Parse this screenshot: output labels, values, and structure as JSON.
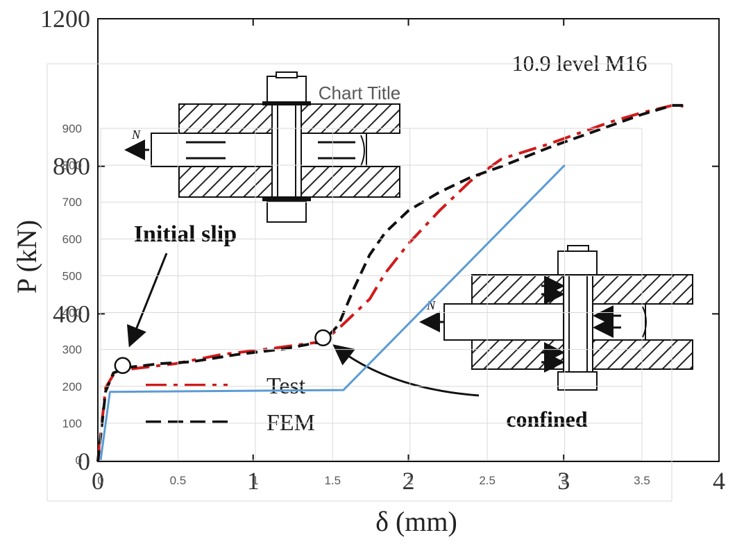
{
  "chart_data": [
    {
      "type": "line",
      "title": "",
      "xlabel": "δ (mm)",
      "ylabel": "P (kN)",
      "xlim": [
        0,
        4
      ],
      "ylim": [
        0,
        1200
      ],
      "x_ticks": [
        "0",
        "1",
        "2",
        "3",
        "4"
      ],
      "y_ticks": [
        "0",
        "400",
        "800",
        "1200"
      ],
      "annotation_top_right": "10.9 level M16",
      "annotations": {
        "initial_slip": "Initial slip",
        "confined": "confined",
        "force_label": "N"
      },
      "legend": [
        {
          "label": "Test",
          "style": "dash-dot",
          "color": "#d11a1a"
        },
        {
          "label": "FEM",
          "style": "dashed",
          "color": "#111111"
        }
      ],
      "series": [
        {
          "name": "Test",
          "color": "#d11a1a",
          "x": [
            0,
            0.05,
            0.1,
            0.2,
            0.5,
            0.8,
            1.1,
            1.45,
            1.55,
            1.65,
            1.75,
            1.85,
            2.0,
            2.2,
            2.4,
            2.6,
            2.9,
            3.1,
            3.3,
            3.5,
            3.7,
            3.77
          ],
          "y": [
            0,
            200,
            235,
            250,
            265,
            290,
            305,
            325,
            360,
            400,
            440,
            510,
            590,
            680,
            760,
            820,
            860,
            890,
            920,
            945,
            965,
            963
          ]
        },
        {
          "name": "FEM",
          "color": "#111111",
          "x": [
            0,
            0.05,
            0.1,
            0.2,
            0.4,
            0.6,
            0.9,
            1.2,
            1.45,
            1.55,
            1.65,
            1.75,
            1.85,
            2.0,
            2.2,
            2.4,
            2.6,
            2.9,
            3.1,
            3.3,
            3.5,
            3.7,
            3.77
          ],
          "y": [
            0,
            190,
            240,
            255,
            265,
            270,
            290,
            305,
            325,
            370,
            470,
            560,
            620,
            680,
            730,
            770,
            800,
            850,
            880,
            910,
            940,
            965,
            965
          ]
        }
      ],
      "markers": [
        {
          "x": 0.16,
          "y": 260
        },
        {
          "x": 1.45,
          "y": 335
        }
      ],
      "grid": false
    },
    {
      "type": "line",
      "title": "Chart Title",
      "x_ticks": [
        "0",
        "0.5",
        "1",
        "1.5",
        "2",
        "2.5",
        "3",
        "3.5"
      ],
      "y_ticks": [
        "0",
        "100",
        "200",
        "300",
        "400",
        "500",
        "600",
        "700",
        "800",
        "900"
      ],
      "xlim": [
        0,
        3.5
      ],
      "ylim": [
        0,
        900
      ],
      "grid": true,
      "series": [
        {
          "color": "#5b9bd5",
          "x": [
            0,
            0.06,
            1.57,
            3.0
          ],
          "y": [
            0,
            185,
            190,
            800
          ]
        }
      ]
    }
  ]
}
